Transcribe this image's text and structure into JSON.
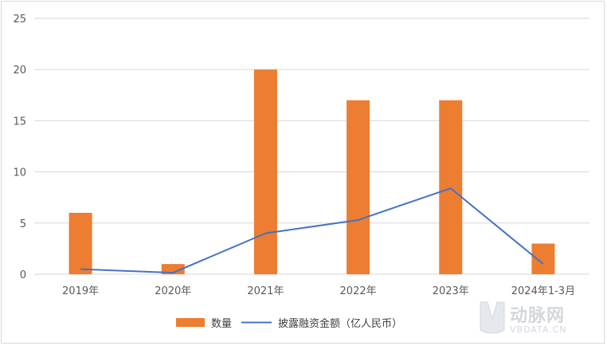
{
  "chart_data": {
    "type": "bar",
    "categories": [
      "2019年",
      "2020年",
      "2021年",
      "2022年",
      "2023年",
      "2024年1-3月"
    ],
    "series": [
      {
        "name": "数量",
        "type": "bar",
        "color": "#ED7D31",
        "values": [
          6,
          1,
          20,
          17,
          17,
          3
        ]
      },
      {
        "name": "披露融资金额（亿人民币）",
        "type": "line",
        "color": "#4472C4",
        "values": [
          0.5,
          0.15,
          4.0,
          5.3,
          8.4,
          1.0
        ]
      }
    ],
    "ylim": [
      0,
      25
    ],
    "yticks": [
      0,
      5,
      10,
      15,
      20,
      25
    ],
    "grid": true,
    "legend": "bottom",
    "title": "",
    "xlabel": "",
    "ylabel": ""
  },
  "watermark": {
    "logo_text": "动脉网",
    "sub_text": "VBDATA.CN"
  }
}
